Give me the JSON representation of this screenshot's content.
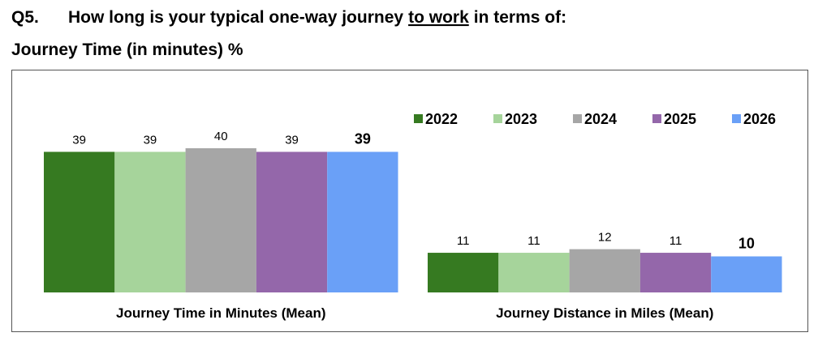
{
  "chart_data": {
    "type": "bar",
    "title_parts": {
      "number": "Q5.",
      "before": "How long is your typical one-way journey",
      "underlined": "to work",
      "after": "in terms of:"
    },
    "subtitle": "Journey Time (in minutes) %",
    "categories": [
      "Journey Time in Minutes (Mean)",
      "Journey Distance in Miles (Mean)"
    ],
    "series": [
      {
        "name": "2022",
        "color": "#367a21",
        "values": [
          39,
          11
        ]
      },
      {
        "name": "2023",
        "color": "#a6d49b",
        "values": [
          39,
          11
        ]
      },
      {
        "name": "2024",
        "color": "#a6a6a6",
        "values": [
          40,
          12
        ]
      },
      {
        "name": "2025",
        "color": "#9467aa",
        "values": [
          39,
          11
        ]
      },
      {
        "name": "2026",
        "color": "#6aa0f7",
        "values": [
          39,
          10
        ],
        "bold_labels": true
      }
    ],
    "legend": "top-right"
  }
}
